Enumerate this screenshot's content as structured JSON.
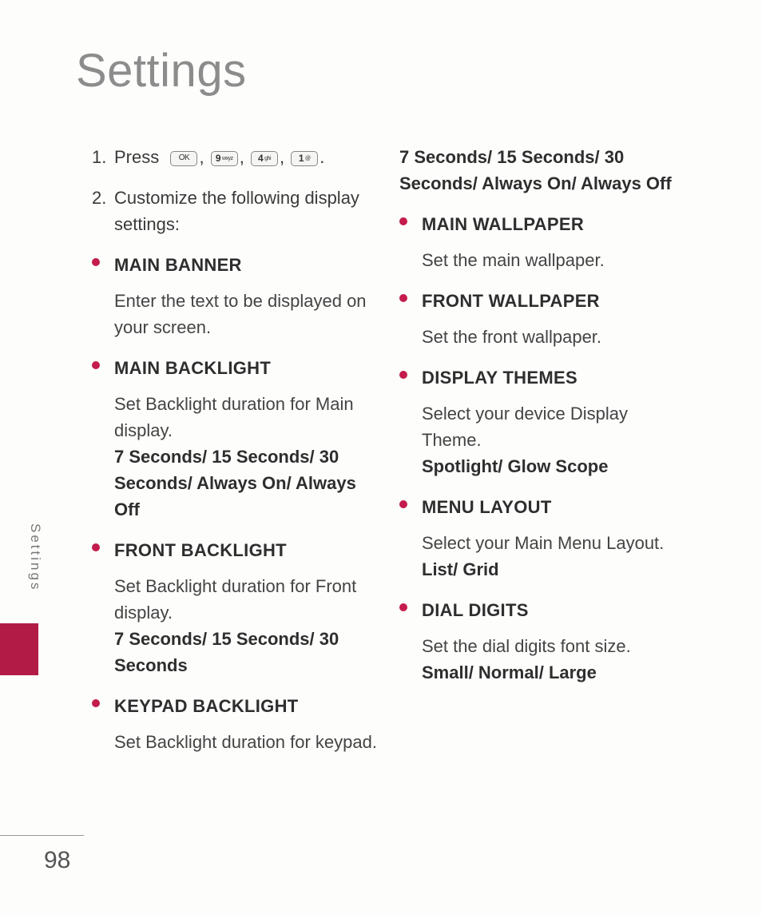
{
  "title": "Settings",
  "side_label": "Settings",
  "page_number": "98",
  "step1": {
    "num": "1.",
    "verb": "Press",
    "keys_aria": [
      "OK key",
      "9 wxyz key",
      "4 ghi key",
      "1 key"
    ],
    "key_ok": "OK",
    "key9_d": "9",
    "key9_l": "wxyz",
    "key4_d": "4",
    "key4_l": "ghi",
    "key1_d": "1",
    "key1_l": "@"
  },
  "step2": {
    "num": "2.",
    "text": "Customize the following display settings:"
  },
  "left_items": [
    {
      "head": "MAIN BANNER",
      "body": "Enter the text to be displayed on your screen.",
      "opts": ""
    },
    {
      "head": "MAIN BACKLIGHT",
      "body": "Set Backlight duration for Main display.",
      "opts": "7 Seconds/ 15 Seconds/ 30 Seconds/ Always On/ Always Off"
    },
    {
      "head": "FRONT BACKLIGHT",
      "body": "Set Backlight duration for Front display.",
      "opts": "7 Seconds/ 15 Seconds/ 30 Seconds"
    },
    {
      "head": "KEYPAD BACKLIGHT",
      "body": "Set Backlight duration for keypad.",
      "opts": ""
    }
  ],
  "right_lead_opts": "7 Seconds/ 15 Seconds/ 30 Seconds/ Always On/ Always Off",
  "right_items": [
    {
      "head": "MAIN WALLPAPER",
      "body": "Set the main wallpaper.",
      "opts": ""
    },
    {
      "head": "FRONT WALLPAPER",
      "body": "Set the front wallpaper.",
      "opts": ""
    },
    {
      "head": "DISPLAY THEMES",
      "body": "Select your device Display Theme.",
      "opts": "Spotlight/ Glow Scope"
    },
    {
      "head": "MENU LAYOUT",
      "body": "Select your Main Menu Layout.",
      "opts": "List/ Grid"
    },
    {
      "head": "DIAL DIGITS",
      "body": "Set the dial digits font size.",
      "opts": "Small/ Normal/ Large"
    }
  ],
  "colors": {
    "accent": "#b31b47",
    "bullet": "#c41c4c",
    "title": "#8c8c8c",
    "body": "#3a3a3a"
  }
}
